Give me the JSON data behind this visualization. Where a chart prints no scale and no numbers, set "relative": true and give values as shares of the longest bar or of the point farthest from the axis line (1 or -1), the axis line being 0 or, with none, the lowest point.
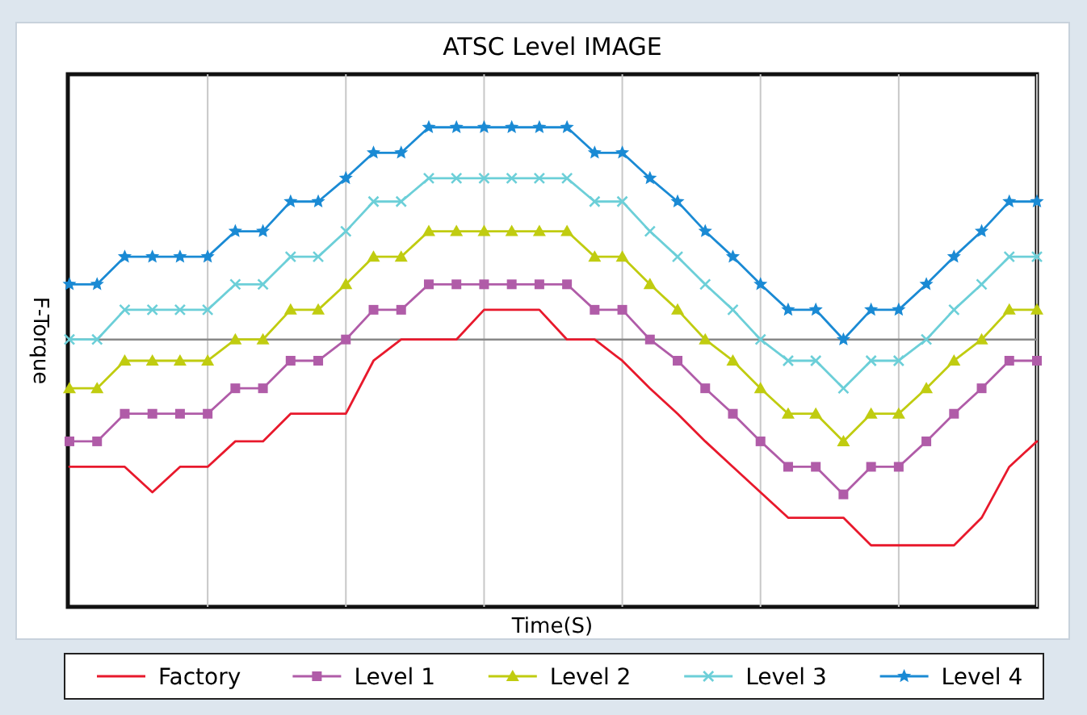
{
  "chart_data": {
    "type": "line",
    "title": "ATSC Level IMAGE",
    "xlabel": "Time(S)",
    "ylabel": "F-Torque",
    "relative": true,
    "grid": "x",
    "legend": "bottom",
    "categories": [
      null,
      null,
      null,
      null,
      null,
      null,
      null,
      null,
      null,
      null,
      null,
      null,
      null,
      null,
      null,
      null,
      null,
      null,
      null,
      null,
      null,
      null,
      null,
      null,
      null,
      null,
      null,
      null,
      null,
      null,
      null,
      null,
      null,
      null,
      null,
      null
    ],
    "series": [
      {
        "name": "Factory",
        "color": "#e8192c",
        "marker": "none",
        "values": [
          -0.6,
          -0.6,
          -0.6,
          -0.72,
          -0.6,
          -0.6,
          -0.48,
          -0.48,
          -0.35,
          -0.35,
          -0.35,
          -0.1,
          0,
          0,
          0,
          0.14,
          0.14,
          0.14,
          0,
          0,
          -0.1,
          -0.23,
          -0.35,
          -0.48,
          -0.6,
          -0.72,
          -0.84,
          -0.84,
          -0.84,
          -0.97,
          -0.97,
          -0.97,
          -0.97,
          -0.84,
          -0.6,
          -0.48
        ]
      },
      {
        "name": "Level 1",
        "color": "#b05ca8",
        "marker": "square",
        "values": [
          -0.48,
          -0.48,
          -0.35,
          -0.35,
          -0.35,
          -0.35,
          -0.23,
          -0.23,
          -0.1,
          -0.1,
          0,
          0.14,
          0.14,
          0.26,
          0.26,
          0.26,
          0.26,
          0.26,
          0.26,
          0.14,
          0.14,
          0,
          -0.1,
          -0.23,
          -0.35,
          -0.48,
          -0.6,
          -0.6,
          -0.73,
          -0.6,
          -0.6,
          -0.48,
          -0.35,
          -0.23,
          -0.1,
          -0.1
        ]
      },
      {
        "name": "Level 2",
        "color": "#c0cc10",
        "marker": "triangle",
        "values": [
          -0.23,
          -0.23,
          -0.1,
          -0.1,
          -0.1,
          -0.1,
          0,
          0,
          0.14,
          0.14,
          0.26,
          0.39,
          0.39,
          0.51,
          0.51,
          0.51,
          0.51,
          0.51,
          0.51,
          0.39,
          0.39,
          0.26,
          0.14,
          0,
          -0.1,
          -0.23,
          -0.35,
          -0.35,
          -0.48,
          -0.35,
          -0.35,
          -0.23,
          -0.1,
          0,
          0.14,
          0.14
        ]
      },
      {
        "name": "Level 3",
        "color": "#6ccfd8",
        "marker": "cross",
        "values": [
          0,
          0,
          0.14,
          0.14,
          0.14,
          0.14,
          0.26,
          0.26,
          0.39,
          0.39,
          0.51,
          0.65,
          0.65,
          0.76,
          0.76,
          0.76,
          0.76,
          0.76,
          0.76,
          0.65,
          0.65,
          0.51,
          0.39,
          0.26,
          0.14,
          0,
          -0.1,
          -0.1,
          -0.23,
          -0.1,
          -0.1,
          0,
          0.14,
          0.26,
          0.39,
          0.39
        ]
      },
      {
        "name": "Level 4",
        "color": "#1a8ad4",
        "marker": "star",
        "values": [
          0.26,
          0.26,
          0.39,
          0.39,
          0.39,
          0.39,
          0.51,
          0.51,
          0.65,
          0.65,
          0.76,
          0.88,
          0.88,
          1,
          1,
          1,
          1,
          1,
          1,
          0.88,
          0.88,
          0.76,
          0.65,
          0.51,
          0.39,
          0.26,
          0.14,
          0.14,
          0,
          0.14,
          0.14,
          0.26,
          0.39,
          0.51,
          0.65,
          0.65
        ]
      }
    ]
  }
}
